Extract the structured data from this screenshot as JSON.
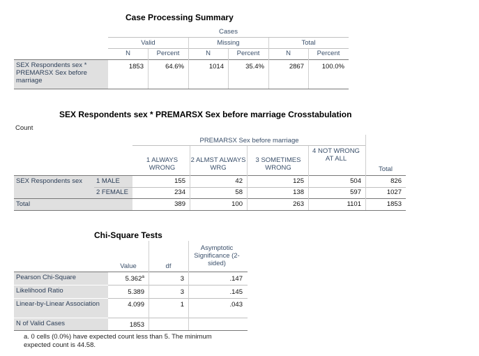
{
  "case_processing": {
    "title": "Case Processing Summary",
    "cases": "Cases",
    "valid": "Valid",
    "missing": "Missing",
    "total": "Total",
    "n": "N",
    "percent": "Percent",
    "row_label": "SEX Respondents sex * PREMARSX Sex before marriage",
    "values": [
      "1853",
      "64.6%",
      "1014",
      "35.4%",
      "2867",
      "100.0%"
    ]
  },
  "crosstab": {
    "title": "SEX Respondents sex * PREMARSX Sex before marriage Crosstabulation",
    "count_label": "Count",
    "col_group": "PREMARSX Sex before marriage",
    "columns": [
      "1 ALWAYS WRONG",
      "2 ALMST ALWAYS WRG",
      "3 SOMETIMES WRONG",
      "4 NOT WRONG AT ALL",
      "Total"
    ],
    "row_var": "SEX Respondents sex",
    "rows": [
      {
        "label": "1 MALE",
        "values": [
          "155",
          "42",
          "125",
          "504",
          "826"
        ]
      },
      {
        "label": "2 FEMALE",
        "values": [
          "234",
          "58",
          "138",
          "597",
          "1027"
        ]
      }
    ],
    "total_row": {
      "label": "Total",
      "values": [
        "389",
        "100",
        "263",
        "1101",
        "1853"
      ]
    }
  },
  "chi_square": {
    "title": "Chi-Square Tests",
    "headers": [
      "Value",
      "df",
      "Asymptotic Significance (2-sided)"
    ],
    "rows": [
      {
        "label": "Pearson Chi-Square",
        "value": "5.362",
        "sup": "a",
        "df": "3",
        "sig": ".147"
      },
      {
        "label": "Likelihood Ratio",
        "value": "5.389",
        "sup": "",
        "df": "3",
        "sig": ".145"
      },
      {
        "label": "Linear-by-Linear Association",
        "value": "4.099",
        "sup": "",
        "df": "1",
        "sig": ".043"
      },
      {
        "label": "N of Valid Cases",
        "value": "1853",
        "sup": "",
        "df": "",
        "sig": ""
      }
    ],
    "footnote": "a. 0 cells (0.0%) have expected count less than 5. The minimum expected count is 44.58."
  }
}
